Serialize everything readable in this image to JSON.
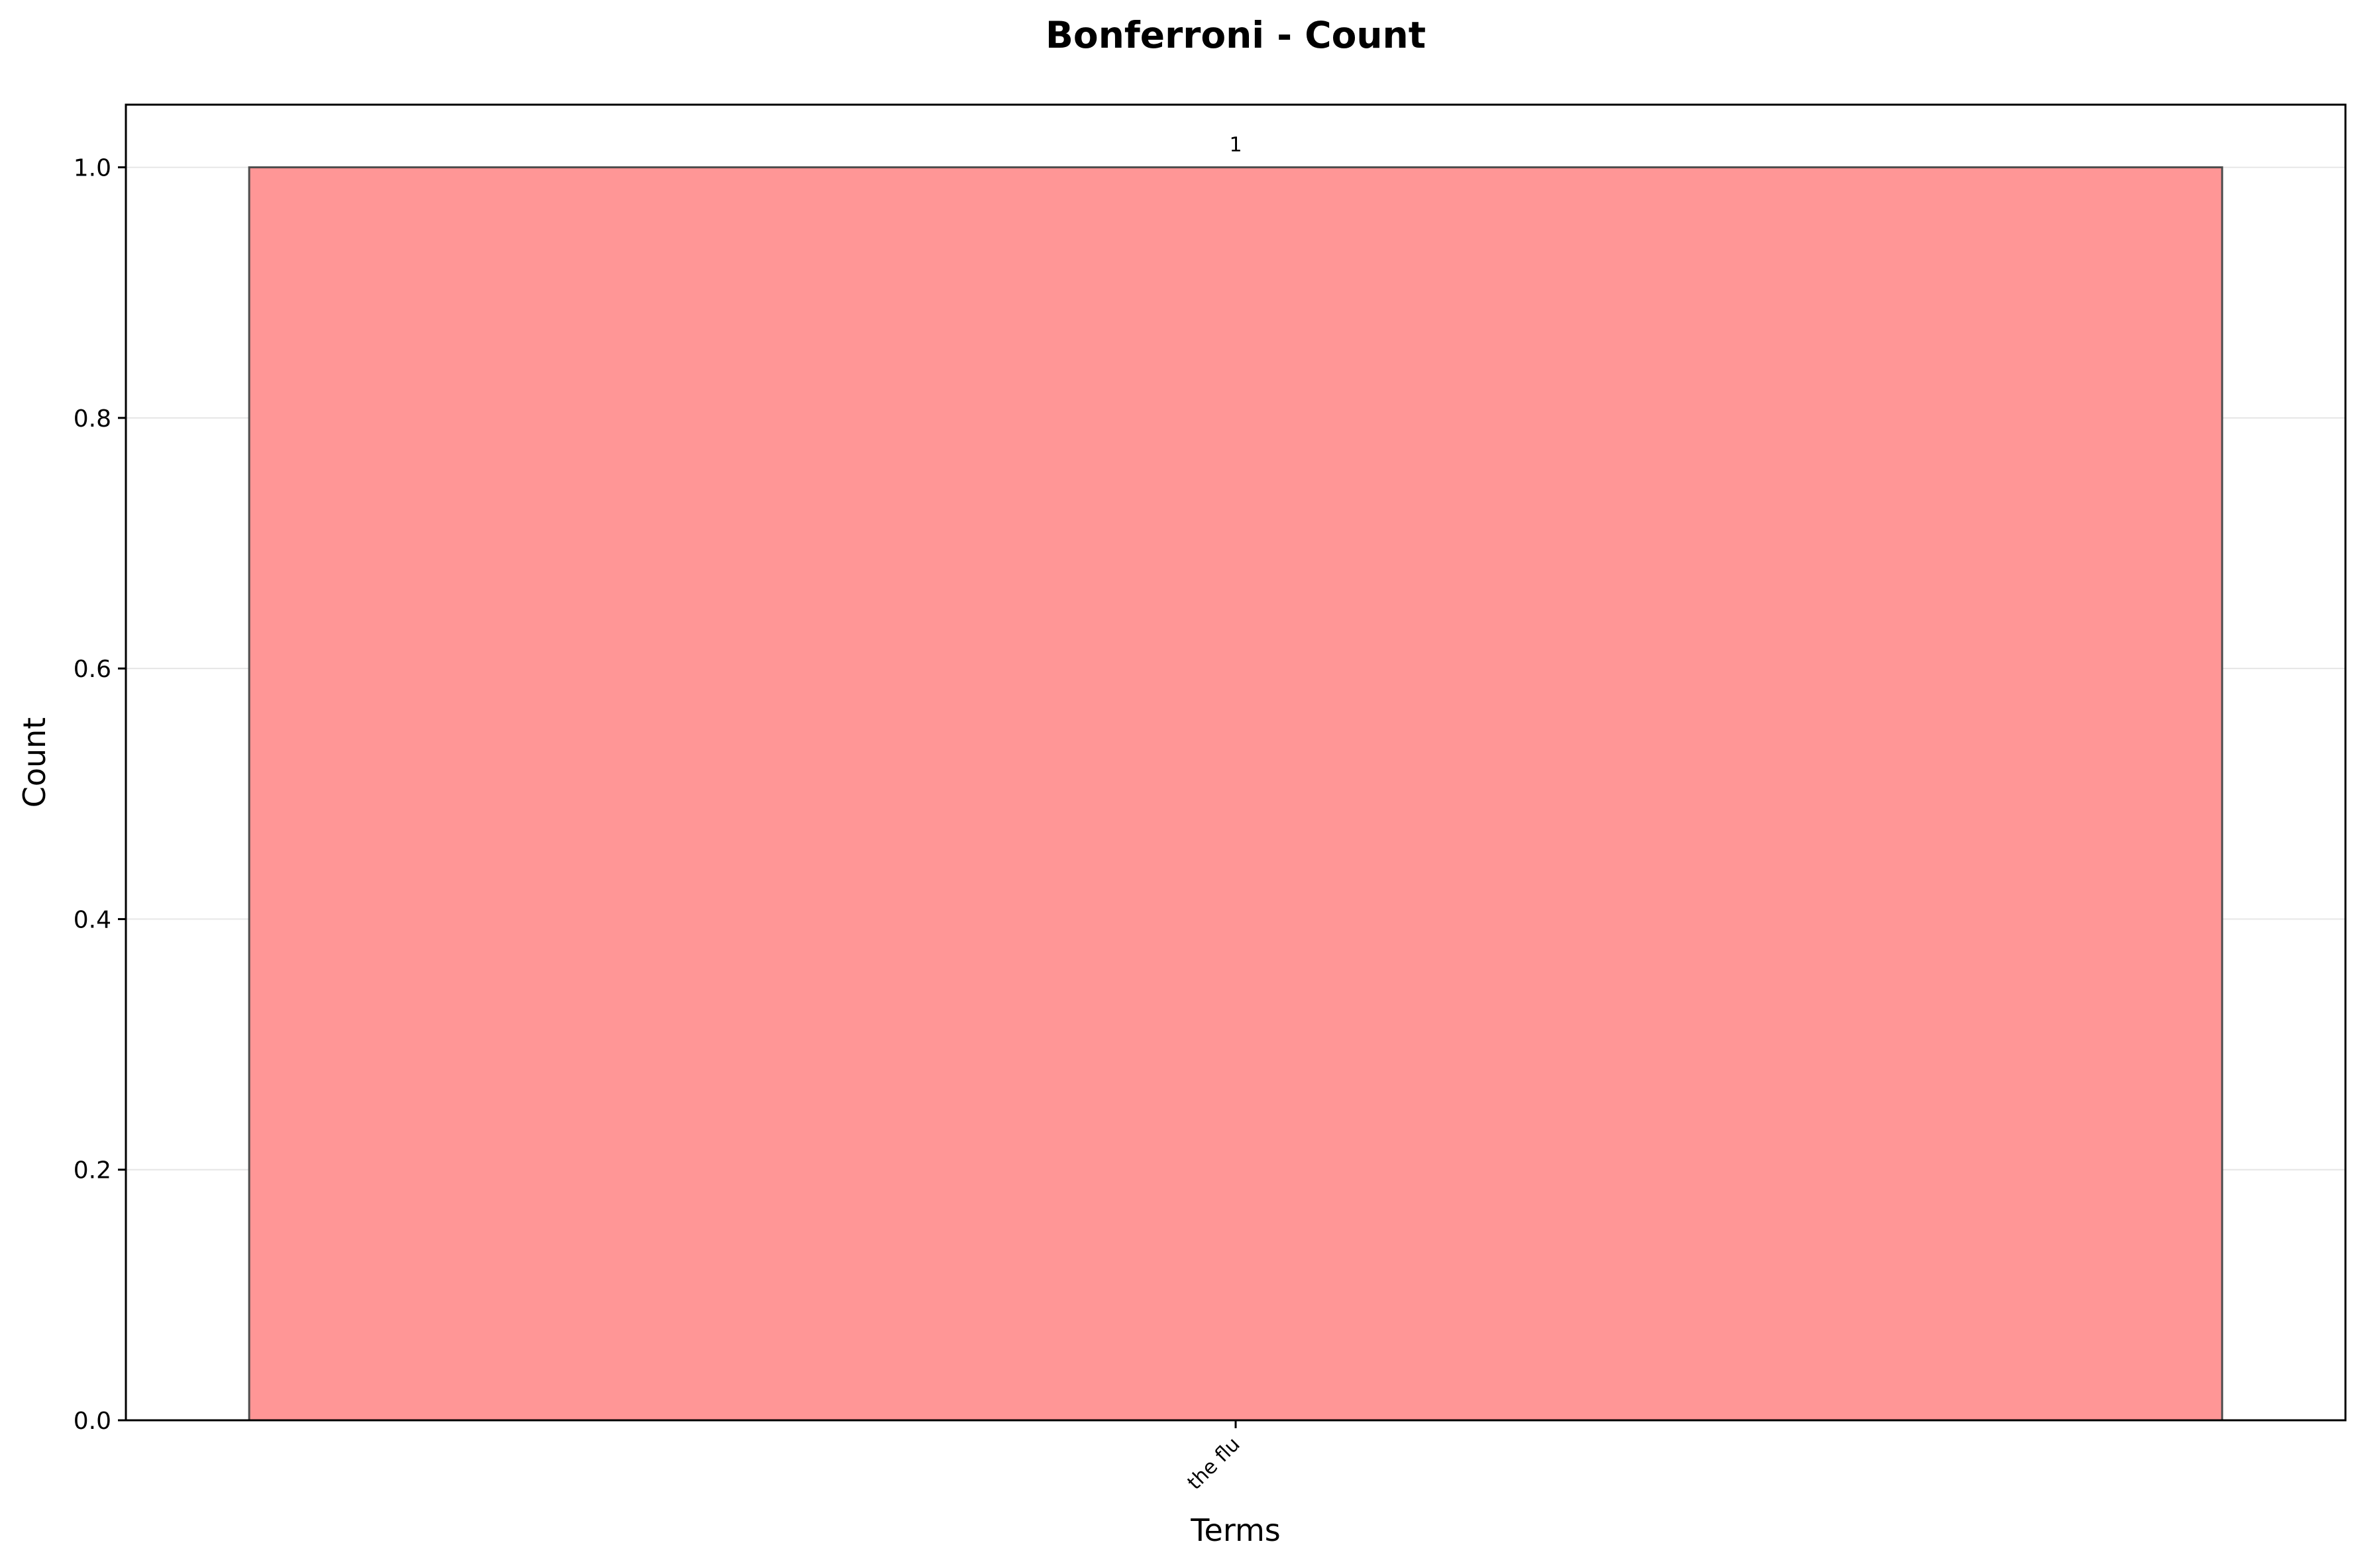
{
  "chart_data": {
    "type": "bar",
    "title": "Bonferroni - Count",
    "xlabel": "Terms",
    "ylabel": "Count",
    "categories": [
      "the flu"
    ],
    "values": [
      1
    ],
    "data_labels": [
      "1"
    ],
    "ylim": [
      0,
      1.05
    ],
    "yticks": [
      0.0,
      0.2,
      0.4,
      0.6,
      0.8,
      1.0
    ],
    "ytick_labels": [
      "0.0",
      "0.2",
      "0.4",
      "0.6",
      "0.8",
      "1.0"
    ],
    "grid": "y",
    "legend": "none",
    "colors": {
      "bar_fill": "#ff9696",
      "bar_edge": "#4d4d4d",
      "grid": "#e6e6e6",
      "axes": "#000000"
    }
  }
}
